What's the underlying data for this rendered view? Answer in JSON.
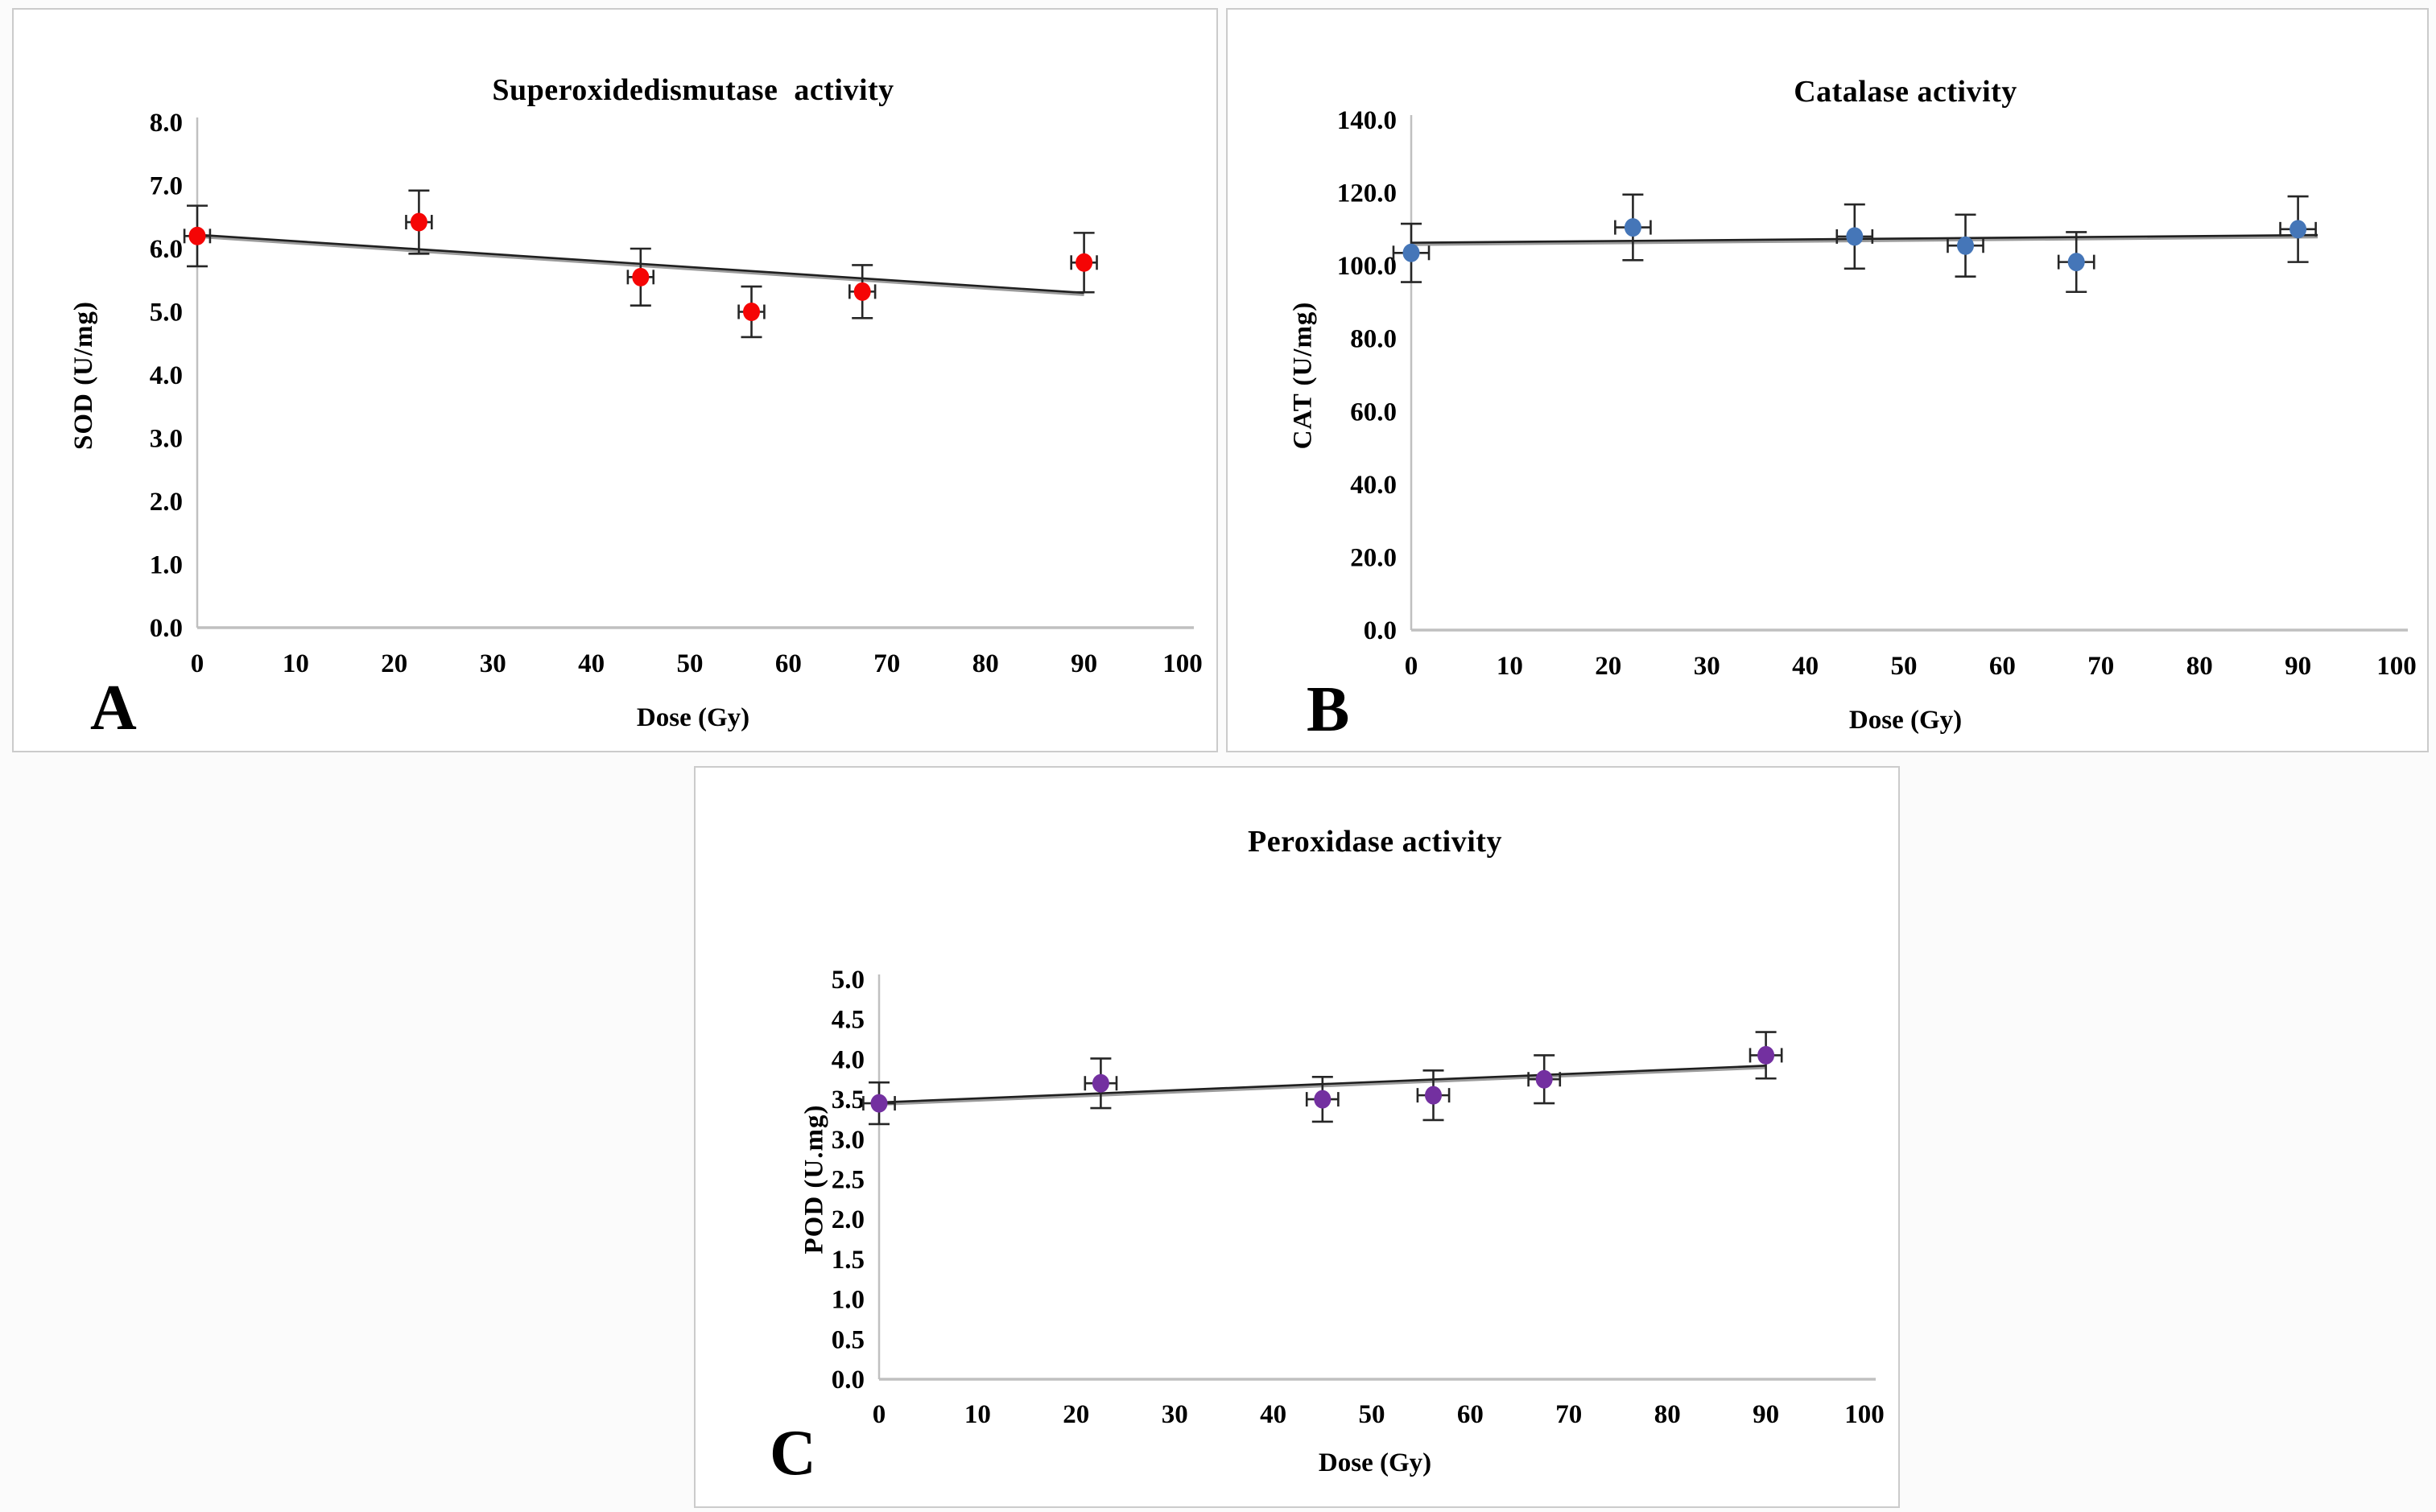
{
  "figure": {
    "description": "Antioxidant enzyme activity versus gamma radiation dose, three panels",
    "x_axis_label": "Dose (Gy)",
    "doses_gy": [
      0,
      22.5,
      45,
      56.25,
      67.5,
      90
    ]
  },
  "chart_data": [
    {
      "type": "scatter",
      "panel_letter": "A",
      "title": "Superoxidedismutase  activity",
      "xlabel": "Dose (Gy)",
      "ylabel": "SOD (U/mg)",
      "x": [
        0,
        22.5,
        45,
        56.25,
        67.5,
        90
      ],
      "y": [
        6.2,
        6.42,
        5.55,
        5.0,
        5.32,
        5.78
      ],
      "yerr": [
        0.48,
        0.5,
        0.45,
        0.4,
        0.42,
        0.47
      ],
      "xerr": 1.3,
      "xlim": [
        0,
        100
      ],
      "xtick_step": 10,
      "ylim": [
        0,
        8
      ],
      "ytick_step": 1,
      "ytick_decimals": 1,
      "xtick_labels": [
        "0",
        "10",
        "20",
        "30",
        "40",
        "50",
        "60",
        "70",
        "80",
        "90",
        "100"
      ],
      "ytick_labels": [
        "0.0",
        "1.0",
        "2.0",
        "3.0",
        "4.0",
        "5.0",
        "6.0",
        "7.0",
        "8.0"
      ],
      "trendline": {
        "x1": 0,
        "y1": 6.22,
        "x2": 90,
        "y2": 5.3
      },
      "point_color": "#f50505",
      "errorbar_color": "#262626",
      "trendline_color": "#1f1f1f",
      "trendline_shadow_color": "#9b9b9b",
      "axis_color": "#c0c0c0",
      "grid": false,
      "legend": "none"
    },
    {
      "type": "scatter",
      "panel_letter": "B",
      "title": "Catalase activity",
      "xlabel": "Dose (Gy)",
      "ylabel": "CAT  (U/mg)",
      "x": [
        0,
        22.5,
        45,
        56.25,
        67.5,
        90
      ],
      "y": [
        103.5,
        110.5,
        108.0,
        105.5,
        101.0,
        110.0
      ],
      "yerr": [
        8.0,
        9.0,
        8.8,
        8.5,
        8.2,
        9.0
      ],
      "xerr": 1.8,
      "xlim": [
        0,
        100
      ],
      "xtick_step": 10,
      "ylim": [
        0,
        140
      ],
      "ytick_step": 20,
      "ytick_decimals": 1,
      "xtick_labels": [
        "0",
        "10",
        "20",
        "30",
        "40",
        "50",
        "60",
        "70",
        "80",
        "90",
        "100"
      ],
      "ytick_labels": [
        "0.0",
        "20.0",
        "40.0",
        "60.0",
        "80.0",
        "100.0",
        "120.0",
        "140.0"
      ],
      "trendline": {
        "x1": 0,
        "y1": 106.3,
        "x2": 92,
        "y2": 108.4
      },
      "point_color": "#4576b8",
      "errorbar_color": "#262626",
      "trendline_color": "#1f1f1f",
      "trendline_shadow_color": "#9b9b9b",
      "axis_color": "#c0c0c0",
      "grid": false,
      "legend": "none"
    },
    {
      "type": "scatter",
      "panel_letter": "C",
      "title": "Peroxidase activity",
      "xlabel": "Dose (Gy)",
      "ylabel": "POD  (U.mg)",
      "x": [
        0,
        22.5,
        45,
        56.25,
        67.5,
        90
      ],
      "y": [
        3.45,
        3.7,
        3.5,
        3.55,
        3.75,
        4.05
      ],
      "yerr": [
        0.26,
        0.31,
        0.28,
        0.31,
        0.3,
        0.29
      ],
      "xerr": 1.6,
      "xlim": [
        0,
        100
      ],
      "xtick_step": 10,
      "ylim": [
        0,
        5
      ],
      "ytick_step": 0.5,
      "ytick_decimals": 1,
      "xtick_labels": [
        "0",
        "10",
        "20",
        "30",
        "40",
        "50",
        "60",
        "70",
        "80",
        "90",
        "100"
      ],
      "ytick_labels": [
        "0.0",
        "0.5",
        "1.0",
        "1.5",
        "2.0",
        "2.5",
        "3.0",
        "3.5",
        "4.0",
        "4.5",
        "5.0"
      ],
      "trendline": {
        "x1": 0,
        "y1": 3.46,
        "x2": 90,
        "y2": 3.92
      },
      "point_color": "#7330a0",
      "errorbar_color": "#262626",
      "trendline_color": "#1f1f1f",
      "trendline_shadow_color": "#9b9b9b",
      "axis_color": "#c0c0c0",
      "grid": false,
      "legend": "none"
    }
  ]
}
